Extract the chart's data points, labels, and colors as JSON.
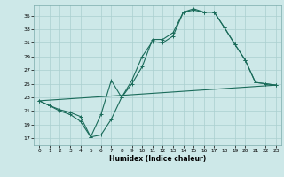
{
  "xlabel": "Humidex (Indice chaleur)",
  "bg_color": "#cde8e8",
  "grid_color": "#aacfcf",
  "line_color": "#1a6b5a",
  "xlim": [
    -0.5,
    23.5
  ],
  "ylim": [
    16,
    36.5
  ],
  "yticks": [
    17,
    19,
    21,
    23,
    25,
    27,
    29,
    31,
    33,
    35
  ],
  "xticks": [
    0,
    1,
    2,
    3,
    4,
    5,
    6,
    7,
    8,
    9,
    10,
    11,
    12,
    13,
    14,
    15,
    16,
    17,
    18,
    19,
    20,
    21,
    22,
    23
  ],
  "line1_x": [
    0,
    1,
    2,
    3,
    4,
    5,
    6,
    7,
    8,
    9,
    10,
    11,
    12,
    13,
    14,
    15,
    16,
    17,
    18,
    19,
    20,
    21,
    22,
    23
  ],
  "line1_y": [
    22.5,
    21.8,
    21.0,
    20.5,
    19.5,
    17.2,
    17.5,
    19.8,
    23.0,
    25.5,
    29.0,
    31.2,
    31.0,
    32.0,
    35.5,
    35.8,
    35.5,
    35.5,
    33.2,
    30.8,
    28.5,
    25.2,
    25.0,
    24.8
  ],
  "line2_x": [
    0,
    1,
    2,
    3,
    4,
    5,
    6,
    7,
    8,
    9,
    10,
    11,
    12,
    13,
    14,
    15,
    16,
    17,
    18,
    19,
    20,
    21,
    22,
    23
  ],
  "line2_y": [
    22.5,
    21.8,
    21.2,
    20.8,
    20.2,
    17.2,
    20.5,
    25.5,
    23.0,
    25.0,
    27.5,
    31.5,
    31.5,
    32.5,
    35.5,
    36.0,
    35.5,
    35.5,
    33.2,
    30.8,
    28.5,
    25.2,
    25.0,
    24.8
  ],
  "line3_x": [
    0,
    23
  ],
  "line3_y": [
    22.5,
    24.8
  ]
}
